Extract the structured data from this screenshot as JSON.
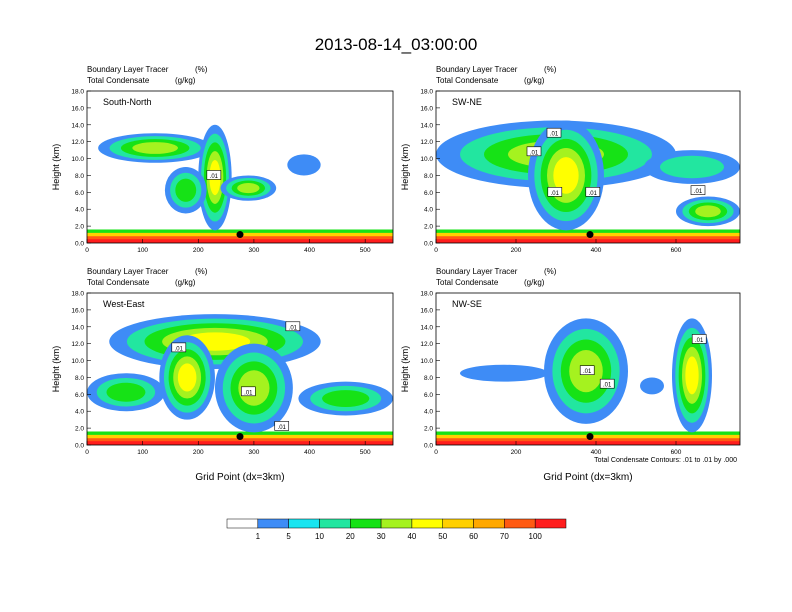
{
  "title": "2013-08-14_03:00:00",
  "palette": [
    "#ffffff",
    "#3e8cf6",
    "#19e5f0",
    "#22e6a0",
    "#16e216",
    "#a5f21f",
    "#ffff00",
    "#ffd000",
    "#ffa800",
    "#ff5a12",
    "#ff1d1d"
  ],
  "colorbar_labels": [
    "1",
    "5",
    "10",
    "20",
    "30",
    "40",
    "50",
    "60",
    "70",
    "100"
  ],
  "footer_note": "Total Condensate Contours: .01 to .01 by .000",
  "contour_label": ".01",
  "chart_data": [
    {
      "type": "heatmap",
      "panel_label": "South-North",
      "header_left_1": "Boundary Layer Tracer",
      "header_right_1": "(%)",
      "header_left_2": "Total Condensate",
      "header_right_2": "(g/kg)",
      "ylabel": "Height (km)",
      "xlabel": "",
      "xlim": [
        0,
        550
      ],
      "ylim": [
        0,
        18
      ],
      "xticks": [
        0,
        100,
        200,
        300,
        400,
        500
      ],
      "yticks": [
        "0.0",
        "2.0",
        "4.0",
        "6.0",
        "8.0",
        "10.0",
        "12.0",
        "14.0",
        "16.0",
        "18.0"
      ],
      "plumes": [
        {
          "x": [
            20,
            225
          ],
          "z": [
            9.5,
            13.0
          ],
          "v": 35
        },
        {
          "x": [
            200,
            260
          ],
          "z": [
            1.5,
            14.0
          ],
          "v": 40
        },
        {
          "x": [
            140,
            215
          ],
          "z": [
            3.5,
            9.0
          ],
          "v": 25
        },
        {
          "x": [
            240,
            340
          ],
          "z": [
            5.0,
            8.0
          ],
          "v": 30
        },
        {
          "x": [
            360,
            420
          ],
          "z": [
            8.0,
            10.5
          ],
          "v": 3
        }
      ],
      "contour_labels_at": [
        {
          "x": 228,
          "z": 8.0
        }
      ],
      "marker_at": {
        "x": 275,
        "z": 1.0
      }
    },
    {
      "type": "heatmap",
      "panel_label": "SW-NE",
      "header_left_1": "Boundary Layer Tracer",
      "header_right_1": "(%)",
      "header_left_2": "Total Condensate",
      "header_right_2": "(g/kg)",
      "ylabel": "Height (km)",
      "xlabel": "",
      "xlim": [
        0,
        760
      ],
      "ylim": [
        0,
        18
      ],
      "xticks": [
        0,
        200,
        400,
        600
      ],
      "yticks": [
        "0.0",
        "2.0",
        "4.0",
        "6.0",
        "8.0",
        "10.0",
        "12.0",
        "14.0",
        "16.0",
        "18.0"
      ],
      "plumes": [
        {
          "x": [
            0,
            600
          ],
          "z": [
            6.5,
            14.5
          ],
          "v": 35
        },
        {
          "x": [
            230,
            420
          ],
          "z": [
            1.5,
            14.5
          ],
          "v": 45
        },
        {
          "x": [
            520,
            760
          ],
          "z": [
            7.0,
            11.0
          ],
          "v": 10
        },
        {
          "x": [
            600,
            760
          ],
          "z": [
            2.0,
            5.5
          ],
          "v": 35
        }
      ],
      "contour_labels_at": [
        {
          "x": 245,
          "z": 10.8
        },
        {
          "x": 295,
          "z": 13.0
        },
        {
          "x": 297,
          "z": 6.0
        },
        {
          "x": 392,
          "z": 6.0
        },
        {
          "x": 655,
          "z": 6.2
        }
      ],
      "marker_at": {
        "x": 385,
        "z": 1.0
      }
    },
    {
      "type": "heatmap",
      "panel_label": "West-East",
      "header_left_1": "Boundary Layer Tracer",
      "header_right_1": "(%)",
      "header_left_2": "Total Condensate",
      "header_right_2": "(g/kg)",
      "ylabel": "Height (km)",
      "xlabel": "Grid Point (dx=3km)",
      "xlim": [
        0,
        550
      ],
      "ylim": [
        0,
        18
      ],
      "xticks": [
        0,
        100,
        200,
        300,
        400,
        500
      ],
      "yticks": [
        "0.0",
        "2.0",
        "4.0",
        "6.0",
        "8.0",
        "10.0",
        "12.0",
        "14.0",
        "16.0",
        "18.0"
      ],
      "plumes": [
        {
          "x": [
            0,
            140
          ],
          "z": [
            4.0,
            8.5
          ],
          "v": 20
        },
        {
          "x": [
            40,
            420
          ],
          "z": [
            9.0,
            15.5
          ],
          "v": 45
        },
        {
          "x": [
            130,
            230
          ],
          "z": [
            3.0,
            13.0
          ],
          "v": 40
        },
        {
          "x": [
            230,
            370
          ],
          "z": [
            1.5,
            12.0
          ],
          "v": 35
        },
        {
          "x": [
            380,
            550
          ],
          "z": [
            3.5,
            7.5
          ],
          "v": 25
        }
      ],
      "contour_labels_at": [
        {
          "x": 165,
          "z": 11.5
        },
        {
          "x": 370,
          "z": 14.0
        },
        {
          "x": 290,
          "z": 6.3
        },
        {
          "x": 350,
          "z": 2.2
        }
      ],
      "marker_at": {
        "x": 275,
        "z": 1.0
      }
    },
    {
      "type": "heatmap",
      "panel_label": "NW-SE",
      "header_left_1": "Boundary Layer Tracer",
      "header_right_1": "(%)",
      "header_left_2": "Total Condensate",
      "header_right_2": "(g/kg)",
      "ylabel": "Height (km)",
      "xlabel": "Grid Point (dx=3km)",
      "xlim": [
        0,
        760
      ],
      "ylim": [
        0,
        18
      ],
      "xticks": [
        0,
        200,
        400,
        600
      ],
      "yticks": [
        "0.0",
        "2.0",
        "4.0",
        "6.0",
        "8.0",
        "10.0",
        "12.0",
        "14.0",
        "16.0",
        "18.0"
      ],
      "plumes": [
        {
          "x": [
            60,
            280
          ],
          "z": [
            7.5,
            9.5
          ],
          "v": 3
        },
        {
          "x": [
            270,
            480
          ],
          "z": [
            2.5,
            15.0
          ],
          "v": 35
        },
        {
          "x": [
            510,
            570
          ],
          "z": [
            6.0,
            8.0
          ],
          "v": 5
        },
        {
          "x": [
            590,
            690
          ],
          "z": [
            1.5,
            15.0
          ],
          "v": 40
        }
      ],
      "contour_labels_at": [
        {
          "x": 378,
          "z": 8.8
        },
        {
          "x": 428,
          "z": 7.2
        },
        {
          "x": 658,
          "z": 12.5
        }
      ],
      "marker_at": {
        "x": 385,
        "z": 1.0
      }
    }
  ]
}
